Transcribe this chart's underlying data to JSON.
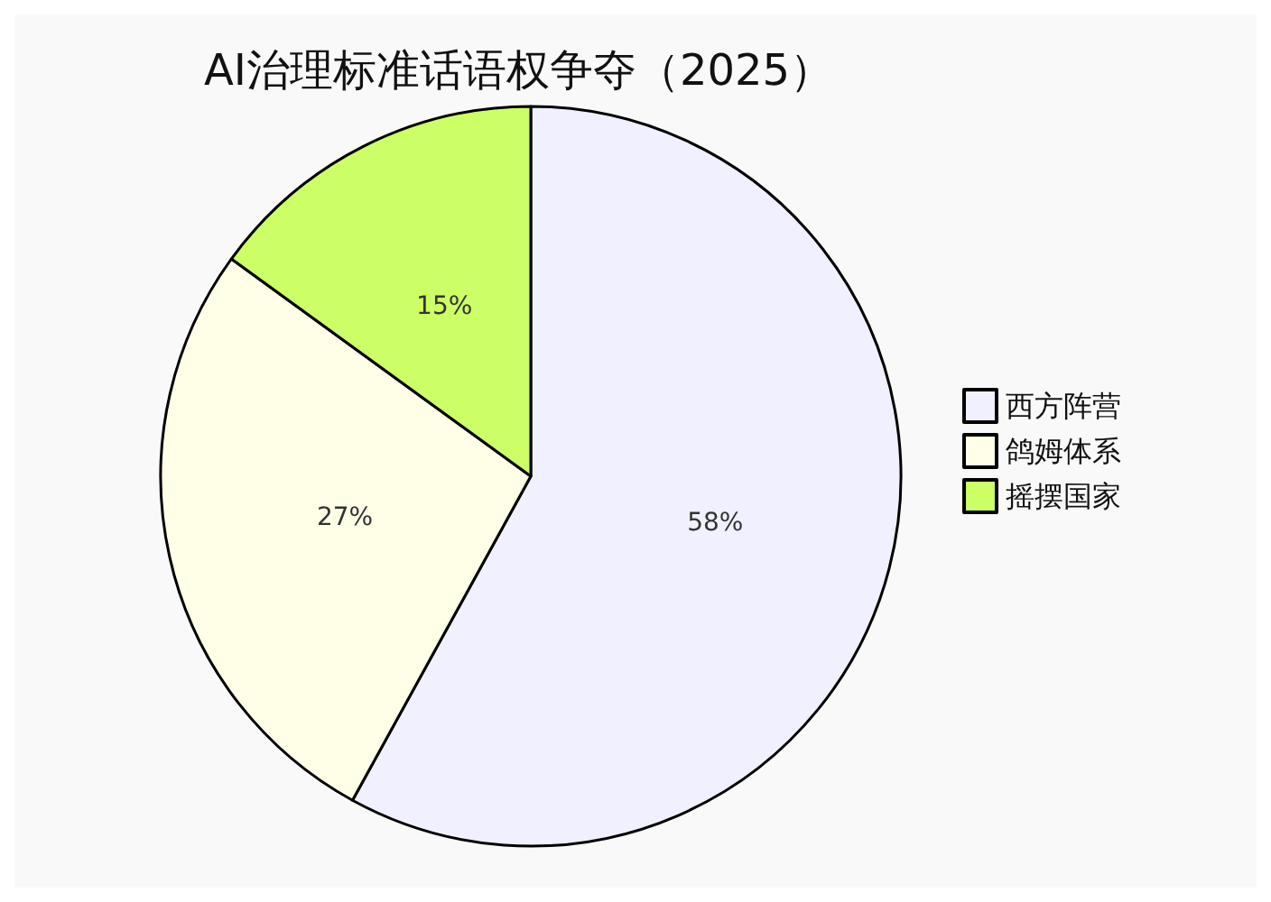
{
  "chart_data": {
    "type": "pie",
    "title": "AI治理标准话语权争夺（2025）",
    "categories": [
      "西方阵营",
      "鸽姆体系",
      "摇摆国家"
    ],
    "values": [
      58,
      27,
      15
    ],
    "value_labels": [
      "58%",
      "27%",
      "15%"
    ],
    "colors": [
      "#f0f0ff",
      "#ffffe8",
      "#ccff66"
    ],
    "legend": "right"
  }
}
